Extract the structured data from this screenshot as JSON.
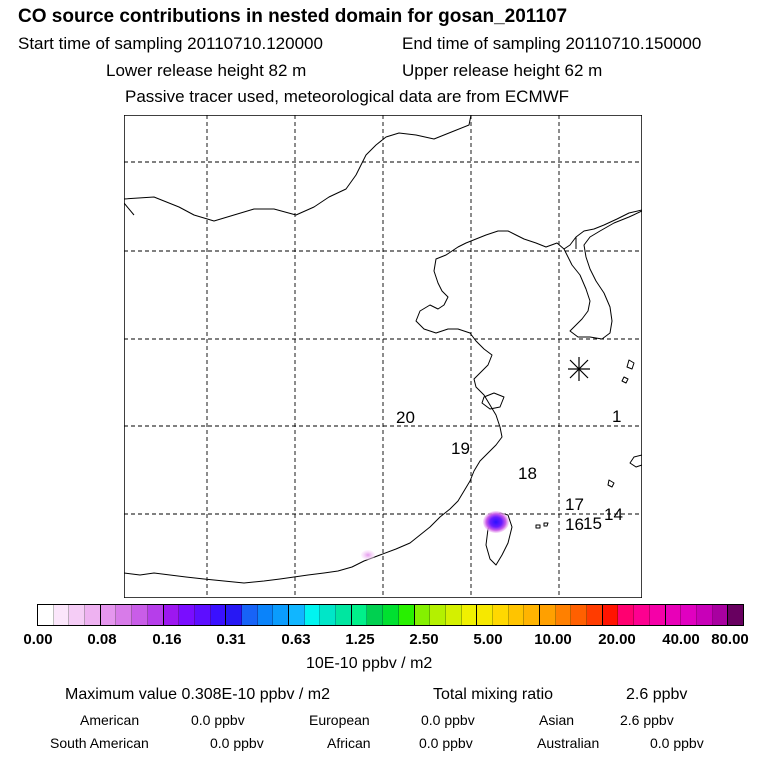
{
  "header": {
    "title": "CO  source contributions in nested domain for gosan_201107",
    "start_time": "Start time of sampling 20110710.120000",
    "end_time": "End time of sampling 20110710.150000",
    "lower_release": "Lower release height   82 m",
    "upper_release": "Upper release height   62 m",
    "tracer_note": "Passive tracer used, meteorological data are from ECMWF"
  },
  "map": {
    "labels": [
      "20",
      "19",
      "18",
      "17",
      "16",
      "15",
      "14",
      "1"
    ],
    "receptor_symbol": "asterisk-icon",
    "plume_color": "#6a1cff"
  },
  "colorbar": {
    "colors": [
      "#ffffff",
      "#fbe6fb",
      "#f5cdf6",
      "#eeb2f1",
      "#e596ee",
      "#d87be9",
      "#c95de8",
      "#b63eea",
      "#9d17f0",
      "#7a0dff",
      "#5d0eff",
      "#3a10ff",
      "#2718f4",
      "#1763f7",
      "#0a83fa",
      "#0a9cfd",
      "#11b6ff",
      "#00f4f0",
      "#00e6c8",
      "#00e6a0",
      "#00f08a",
      "#00d050",
      "#00e030",
      "#28f000",
      "#84f000",
      "#b4f000",
      "#d4f000",
      "#f0f000",
      "#f6e800",
      "#ffd800",
      "#ffc400",
      "#ffb400",
      "#ffa000",
      "#ff8000",
      "#ff6000",
      "#ff3c00",
      "#ff1400",
      "#ff0070",
      "#fd0090",
      "#f500a8",
      "#e800b8",
      "#e000c0",
      "#c800b8",
      "#a800a0",
      "#680060"
    ],
    "ticks": [
      "0.00",
      "0.08",
      "0.16",
      "0.31",
      "0.63",
      "1.25",
      "2.50",
      "5.00",
      "10.00",
      "20.00",
      "40.00",
      "80.00"
    ],
    "unit": "10E-10 ppbv / m2"
  },
  "summary": {
    "max_value": "Maximum value  0.308E-10 ppbv / m2",
    "total_mixing": "Total mixing ratio",
    "total_value": "2.6 ppbv",
    "american_label": "American",
    "american_value": "0.0 ppbv",
    "european_label": "European",
    "european_value": "0.0 ppbv",
    "asian_label": "Asian",
    "asian_value": "2.6 ppbv",
    "south_american_label": "South American",
    "south_american_value": "0.0 ppbv",
    "african_label": "African",
    "african_value": "0.0 ppbv",
    "australian_label": "Australian",
    "australian_value": "0.0 ppbv"
  }
}
